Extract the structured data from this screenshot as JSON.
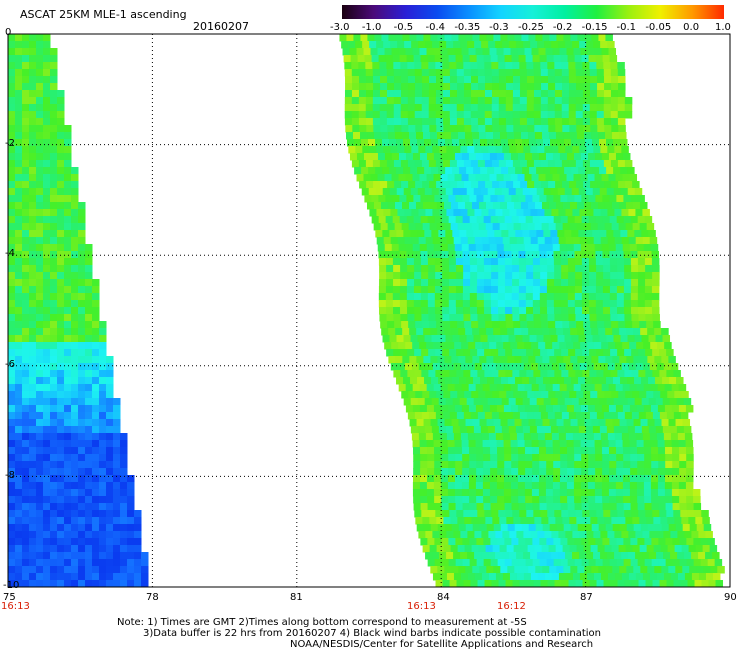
{
  "title": "ASCAT 25KM MLE-1 ascending",
  "date": "20160207",
  "colorbar": {
    "labels": [
      "-3.0",
      "-1.0",
      "-0.5",
      "-0.4",
      "-0.35",
      "-0.3",
      "-0.25",
      "-0.2",
      "-0.15",
      "-0.1",
      "-0.05",
      "0.0",
      "1.0"
    ],
    "colors": [
      "#1a0010",
      "#4b0a7a",
      "#2a1fd6",
      "#0a4cf0",
      "#0a90ff",
      "#13d4ff",
      "#16f0d8",
      "#00f0a0",
      "#20f040",
      "#9af010",
      "#f0f000",
      "#ff9a00",
      "#ff2a00"
    ]
  },
  "axes": {
    "x_ticks": [
      "75",
      "78",
      "81",
      "84",
      "87",
      "90"
    ],
    "y_ticks": [
      "0",
      "-2",
      "-4",
      "-6",
      "-8",
      "-10"
    ],
    "xlim": [
      75,
      90
    ],
    "ylim": [
      -10,
      0
    ]
  },
  "time_labels": {
    "t1": "16:13",
    "t2": "16:13",
    "t3": "16:12"
  },
  "notes": {
    "line1": "Note: 1) Times are GMT 2)Times along bottom correspond to measurement at -5S",
    "line2": "3)Data buffer is 22 hrs from 20160207 4) Black wind barbs indicate possible contamination",
    "line3": "NOAA/NESDIS/Center for Satellite Applications and Research"
  }
}
